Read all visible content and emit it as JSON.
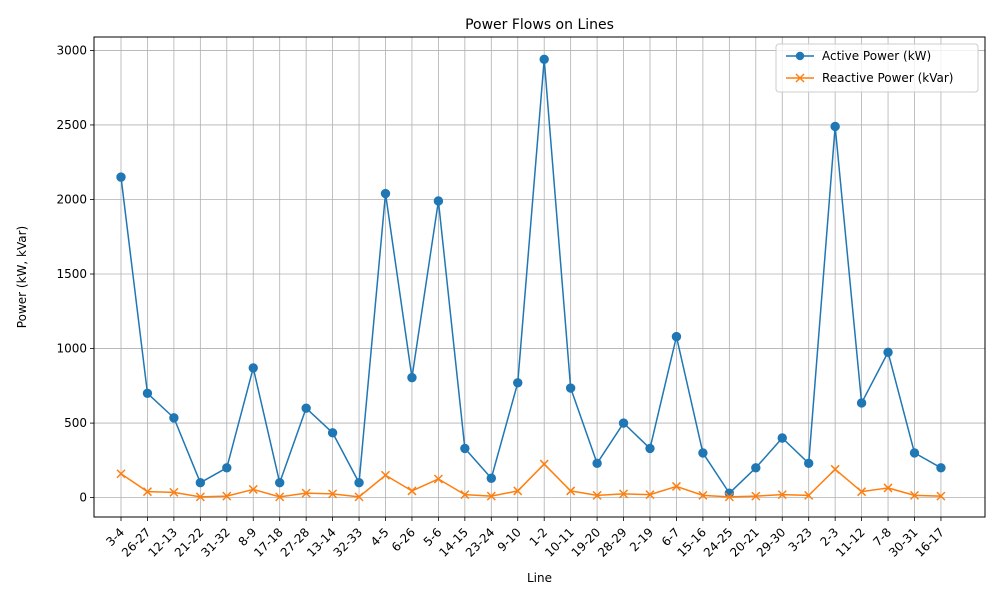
{
  "chart_data": {
    "type": "line",
    "title": "Power Flows on Lines",
    "xlabel": "Line",
    "ylabel": "Power (kW, kVar)",
    "ylim": [
      -130,
      3090
    ],
    "yticks": [
      0,
      500,
      1000,
      1500,
      2000,
      2500,
      3000
    ],
    "grid": true,
    "legend_position": "top-right",
    "categories": [
      "3-4",
      "26-27",
      "12-13",
      "21-22",
      "31-32",
      "8-9",
      "17-18",
      "27-28",
      "13-14",
      "32-33",
      "4-5",
      "6-26",
      "5-6",
      "14-15",
      "23-24",
      "9-10",
      "1-2",
      "10-11",
      "19-20",
      "28-29",
      "2-19",
      "6-7",
      "15-16",
      "24-25",
      "20-21",
      "29-30",
      "3-23",
      "2-3",
      "11-12",
      "7-8",
      "30-31",
      "16-17"
    ],
    "series": [
      {
        "name": "Active Power (kW)",
        "color": "#1f77b4",
        "marker": "circle",
        "values": [
          2150,
          700,
          535,
          100,
          200,
          870,
          100,
          600,
          435,
          100,
          2040,
          805,
          1990,
          330,
          130,
          770,
          2940,
          735,
          230,
          500,
          330,
          1080,
          300,
          30,
          200,
          400,
          230,
          2490,
          635,
          975,
          300,
          200
        ]
      },
      {
        "name": "Reactive Power (kVar)",
        "color": "#ff7f0e",
        "marker": "x",
        "values": [
          160,
          40,
          35,
          5,
          10,
          55,
          5,
          30,
          25,
          5,
          150,
          45,
          125,
          20,
          10,
          45,
          225,
          45,
          15,
          25,
          20,
          75,
          15,
          5,
          10,
          20,
          15,
          190,
          40,
          65,
          15,
          10
        ]
      }
    ]
  }
}
